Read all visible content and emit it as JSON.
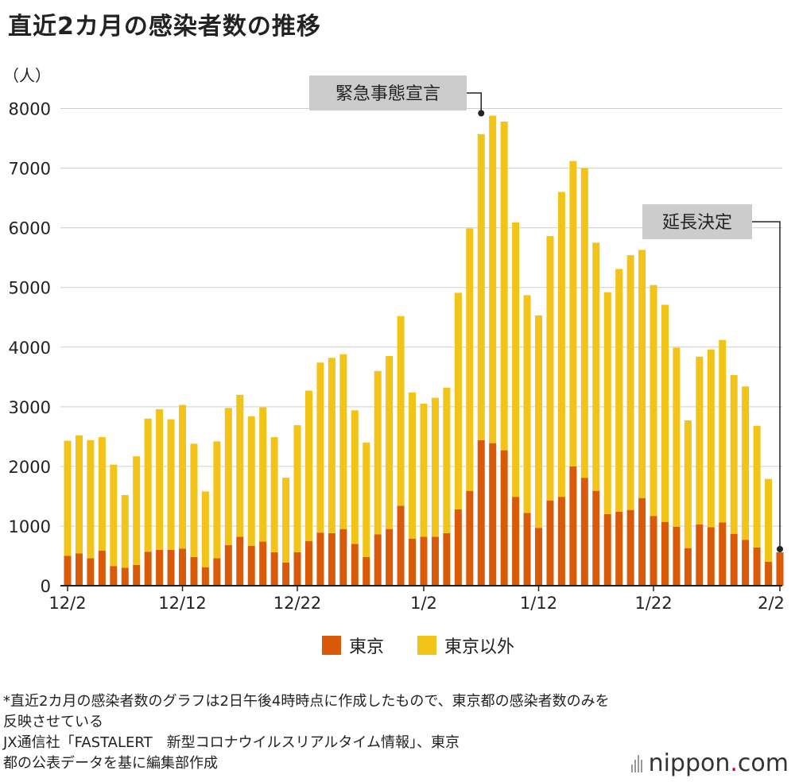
{
  "title": "直近2カ月の感染者数の推移",
  "colors": {
    "tokyo": "#d95b0a",
    "other": "#f2c318",
    "grid": "#cfcfcf",
    "axis": "#222222",
    "callout_bg": "#cccccc"
  },
  "notes": {
    "line1": "*直近2カ月の感染者数のグラフは2日午後4時時点に作成したもので、東京都の感染者数のみを",
    "line2": "反映させている",
    "line3": "JX通信社「FASTALERT　新型コロナウイルスリアルタイム情報」、東京",
    "line4": "都の公表データを基に編集部作成"
  },
  "logo": {
    "text_left": "nippon",
    "text_dot": ".",
    "text_right": "com"
  },
  "chart_data": {
    "type": "bar",
    "stacked": true,
    "title": "直近2カ月の感染者数の推移",
    "ylabel": "（人）",
    "xlabel": "",
    "ylim": [
      0,
      8000
    ],
    "yticks": [
      0,
      1000,
      2000,
      3000,
      4000,
      5000,
      6000,
      7000,
      8000
    ],
    "categories": [
      "12/2",
      "12/3",
      "12/4",
      "12/5",
      "12/6",
      "12/7",
      "12/8",
      "12/9",
      "12/10",
      "12/11",
      "12/12",
      "12/13",
      "12/14",
      "12/15",
      "12/16",
      "12/17",
      "12/18",
      "12/19",
      "12/20",
      "12/21",
      "12/22",
      "12/23",
      "12/24",
      "12/25",
      "12/26",
      "12/27",
      "12/28",
      "12/29",
      "12/30",
      "12/31",
      "1/1",
      "1/2",
      "1/3",
      "1/4",
      "1/5",
      "1/6",
      "1/7",
      "1/8",
      "1/9",
      "1/10",
      "1/11",
      "1/12",
      "1/13",
      "1/14",
      "1/15",
      "1/16",
      "1/17",
      "1/18",
      "1/19",
      "1/20",
      "1/21",
      "1/22",
      "1/23",
      "1/24",
      "1/25",
      "1/26",
      "1/27",
      "1/28",
      "1/29",
      "1/30",
      "1/31",
      "2/1",
      "2/2"
    ],
    "tick_labels": [
      {
        "index": 0,
        "label": "12/2"
      },
      {
        "index": 10,
        "label": "12/12"
      },
      {
        "index": 20,
        "label": "12/22"
      },
      {
        "index": 31,
        "label": "1/2"
      },
      {
        "index": 41,
        "label": "1/12"
      },
      {
        "index": 51,
        "label": "1/22"
      },
      {
        "index": 62,
        "label": "2/2"
      }
    ],
    "series": [
      {
        "name": "東京",
        "values": [
          500,
          540,
          460,
          590,
          330,
          300,
          350,
          570,
          600,
          600,
          620,
          480,
          310,
          460,
          680,
          820,
          670,
          740,
          560,
          390,
          560,
          750,
          890,
          880,
          950,
          700,
          480,
          860,
          950,
          1340,
          790,
          820,
          820,
          880,
          1280,
          1590,
          2440,
          2390,
          2270,
          1490,
          1220,
          970,
          1430,
          1490,
          2000,
          1810,
          1590,
          1200,
          1240,
          1270,
          1470,
          1170,
          1070,
          990,
          630,
          1030,
          980,
          1060,
          870,
          770,
          640,
          400,
          560
        ]
      },
      {
        "name": "東京以外",
        "values": [
          1930,
          1980,
          1980,
          1900,
          1700,
          1220,
          1820,
          2230,
          2360,
          2190,
          2410,
          1900,
          1270,
          1960,
          2300,
          2380,
          2170,
          2250,
          1930,
          1420,
          2130,
          2520,
          2850,
          2940,
          2930,
          2240,
          1920,
          2740,
          2900,
          3180,
          2450,
          2230,
          2330,
          2440,
          3630,
          4400,
          5130,
          5490,
          5510,
          4600,
          3650,
          3560,
          4430,
          5110,
          5120,
          5190,
          4160,
          3720,
          4070,
          4270,
          4160,
          3870,
          3640,
          3000,
          2140,
          2810,
          2980,
          3060,
          2660,
          2570,
          2040,
          1390,
          0
        ]
      }
    ],
    "annotations": [
      {
        "text": "緊急事態宣言",
        "index": 36,
        "value": 7920
      },
      {
        "text": "延長決定",
        "index": 62,
        "value": 560
      }
    ]
  }
}
